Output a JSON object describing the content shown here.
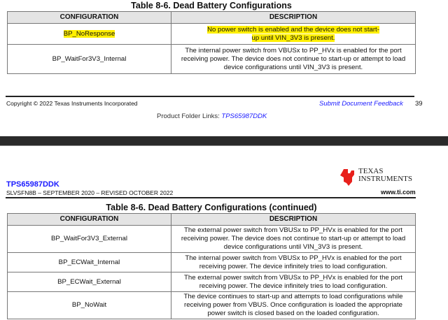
{
  "page1": {
    "table_title": "Table 8-6. Dead Battery Configurations",
    "headers": [
      "CONFIGURATION",
      "DESCRIPTION"
    ],
    "rows": [
      {
        "config": "BP_NoResponse",
        "description": "No power switch is enabled and the device does not start-up until VIN_3V3 is present.",
        "highlighted": true
      },
      {
        "config": "BP_WaitFor3V3_Internal",
        "description": "The internal power switch from VBUSx to PP_HVx is enabled for the port receiving power. The device does not continue to start-up or attempt to load device configurations until VIN_3V3 is present."
      }
    ],
    "footer": {
      "copyright": "Copyright © 2022 Texas Instruments Incorporated",
      "feedback": "Submit Document Feedback",
      "page_number": "39",
      "product_links_label": "Product Folder Links:",
      "product_link": "TPS65987DDK"
    }
  },
  "page2": {
    "product": "TPS65987DDK",
    "doc_id": "SLVSFN8B – SEPTEMBER 2020 – REVISED OCTOBER 2022",
    "logo_text": [
      "TEXAS",
      "INSTRUMENTS"
    ],
    "website": "www.ti.com",
    "table_title": "Table 8-6. Dead Battery Configurations (continued)",
    "headers": [
      "CONFIGURATION",
      "DESCRIPTION"
    ],
    "rows": [
      {
        "config": "BP_WaitFor3V3_External",
        "description": "The external power switch from VBUSx to PP_HVx is enabled for the port receiving power. The device does not continue to start-up or attempt to load device configurations until VIN_3V3 is present."
      },
      {
        "config": "BP_ECWait_Internal",
        "description": "The internal power switch from VBUSx to PP_HVx is enabled for the port receiving power. The device infinitely tries to load configuration."
      },
      {
        "config": "BP_ECWait_External",
        "description": "The external power switch from VBUSx to PP_HVx is enabled for the port receiving power. The device infinitely tries to load configuration."
      },
      {
        "config": "BP_NoWait",
        "description": "The device continues to start-up and attempts to load configurations while receiving power from VBUS. Once configuration is loaded the appropriate power switch is closed based on the loaded configuration."
      }
    ]
  },
  "colors": {
    "highlight": "#ffef00",
    "link": "#1a1aff",
    "ti_red": "#e8201c"
  }
}
